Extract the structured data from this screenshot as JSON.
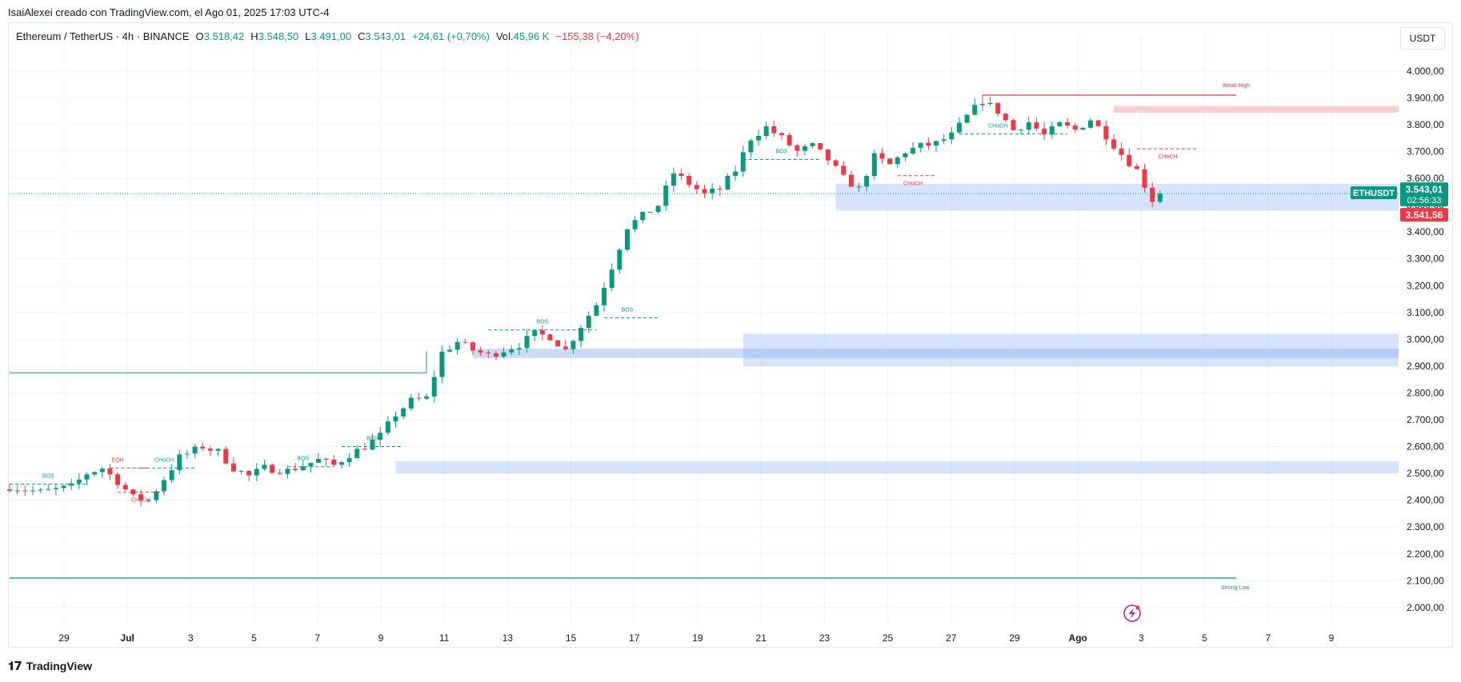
{
  "credit": "IsaiAlexei creado con TradingView.com, el Ago 01, 2025 17:03 UTC-4",
  "legend": {
    "symbol": "Ethereum / TetherUS · 4h · BINANCE",
    "o_label": "O",
    "o_value": "3.518,42",
    "h_label": "H",
    "h_value": "3.548,50",
    "l_label": "L",
    "l_value": "3.491,00",
    "c_label": "C",
    "c_value": "3.543,01",
    "change": "+24,61 (+0,70%)",
    "vol_label": "Vol.",
    "vol_value": "45,96 K",
    "vol_change": "−155,38 (−4,20%)"
  },
  "currency_button": "USDT",
  "brand": "TradingView",
  "colors": {
    "up": "#089981",
    "down": "#f23645",
    "zone_blue": "#b2ccfb",
    "zone_red": "#f7c3c6",
    "grid": "#f0f3fa"
  },
  "chart_data": {
    "type": "candlestick",
    "y_range": [
      1940,
      4080
    ],
    "y_ticks": [
      "4.000,00",
      "3.900,00",
      "3.800,00",
      "3.700,00",
      "3.600,00",
      "3.500,00",
      "3.400,00",
      "3.300,00",
      "3.200,00",
      "3.100,00",
      "3.000,00",
      "2.900,00",
      "2.800,00",
      "2.700,00",
      "2.600,00",
      "2.500,00",
      "2.400,00",
      "2.300,00",
      "2.200,00",
      "2.100,00",
      "2.000,00"
    ],
    "x_ticks": [
      "29",
      "Jul",
      "3",
      "5",
      "7",
      "9",
      "11",
      "13",
      "15",
      "17",
      "19",
      "21",
      "23",
      "25",
      "27",
      "29",
      "Ago",
      "3",
      "5",
      "7",
      "9"
    ],
    "price_label": {
      "name": "ETHUSDT",
      "price": "3.543,01",
      "countdown": "02:56:33",
      "value": 3543.01
    },
    "low_label": {
      "price": "3.541,56",
      "value": 3541.56
    },
    "waypoints": [
      [
        0,
        2450
      ],
      [
        4,
        2430
      ],
      [
        6,
        2440
      ],
      [
        8,
        2450
      ],
      [
        10,
        2500
      ],
      [
        12,
        2520
      ],
      [
        14,
        2470
      ],
      [
        16,
        2410
      ],
      [
        18,
        2400
      ],
      [
        20,
        2480
      ],
      [
        22,
        2560
      ],
      [
        25,
        2600
      ],
      [
        27,
        2580
      ],
      [
        29,
        2520
      ],
      [
        31,
        2490
      ],
      [
        33,
        2520
      ],
      [
        36,
        2510
      ],
      [
        38,
        2530
      ],
      [
        40,
        2550
      ],
      [
        42,
        2530
      ],
      [
        44,
        2570
      ],
      [
        46,
        2600
      ],
      [
        48,
        2640
      ],
      [
        50,
        2720
      ],
      [
        52,
        2770
      ],
      [
        54,
        2780
      ],
      [
        56,
        2950
      ],
      [
        58,
        2990
      ],
      [
        60,
        2960
      ],
      [
        62,
        2940
      ],
      [
        64,
        2960
      ],
      [
        66,
        2980
      ],
      [
        68,
        3020
      ],
      [
        70,
        3010
      ],
      [
        72,
        2960
      ],
      [
        74,
        3050
      ],
      [
        76,
        3130
      ],
      [
        78,
        3270
      ],
      [
        80,
        3420
      ],
      [
        82,
        3460
      ],
      [
        84,
        3500
      ],
      [
        86,
        3620
      ],
      [
        88,
        3580
      ],
      [
        90,
        3540
      ],
      [
        92,
        3560
      ],
      [
        94,
        3630
      ],
      [
        96,
        3750
      ],
      [
        98,
        3790
      ],
      [
        100,
        3750
      ],
      [
        102,
        3700
      ],
      [
        104,
        3720
      ],
      [
        106,
        3670
      ],
      [
        108,
        3600
      ],
      [
        110,
        3560
      ],
      [
        112,
        3680
      ],
      [
        114,
        3650
      ],
      [
        116,
        3700
      ],
      [
        118,
        3720
      ],
      [
        120,
        3730
      ],
      [
        122,
        3760
      ],
      [
        124,
        3830
      ],
      [
        126,
        3890
      ],
      [
        128,
        3850
      ],
      [
        130,
        3780
      ],
      [
        132,
        3810
      ],
      [
        134,
        3760
      ],
      [
        136,
        3800
      ],
      [
        138,
        3780
      ],
      [
        140,
        3820
      ],
      [
        142,
        3760
      ],
      [
        144,
        3690
      ],
      [
        146,
        3630
      ],
      [
        148,
        3520
      ],
      [
        149,
        3543
      ]
    ],
    "zones": [
      {
        "from": 107,
        "to": 9999,
        "top": 3580,
        "bottom": 3480,
        "kind": "demand"
      },
      {
        "from": 95,
        "to": 9999,
        "top": 3020,
        "bottom": 2900,
        "kind": "demand"
      },
      {
        "from": 60,
        "to": 9999,
        "top": 2965,
        "bottom": 2930,
        "kind": "demand-core"
      },
      {
        "from": 50,
        "to": 9999,
        "top": 2545,
        "bottom": 2500,
        "kind": "demand"
      },
      {
        "from": 143,
        "to": 9999,
        "top": 3870,
        "bottom": 3845,
        "kind": "supply"
      }
    ],
    "annotations": [
      {
        "label": "BOS",
        "x": 5,
        "price": 2460,
        "type": "bos",
        "from": 0,
        "to": 10
      },
      {
        "label": "EQH",
        "x": 14,
        "price": 2520,
        "type": "eqh",
        "from": 13,
        "to": 18
      },
      {
        "label": "CHoCH",
        "x": 20,
        "price": 2520,
        "type": "choch",
        "from": 17,
        "to": 24
      },
      {
        "label": "CHoCH",
        "x": 17,
        "price": 2430,
        "type": "chochd",
        "from": 14,
        "to": 20
      },
      {
        "label": "BOS",
        "x": 38,
        "price": 2525,
        "type": "bos",
        "from": 36,
        "to": 42
      },
      {
        "label": "BOS",
        "x": 47,
        "price": 2600,
        "type": "bos",
        "from": 43,
        "to": 51
      },
      {
        "label": "BOS",
        "x": 69,
        "price": 3035,
        "type": "bos",
        "from": 62,
        "to": 76
      },
      {
        "label": "BOS",
        "x": 80,
        "price": 3080,
        "type": "bos",
        "from": 77,
        "to": 84
      },
      {
        "label": "BOS",
        "x": 100,
        "price": 3670,
        "type": "bos",
        "from": 95,
        "to": 105
      },
      {
        "label": "CHoCH",
        "x": 117,
        "price": 3610,
        "type": "chochd",
        "from": 115,
        "to": 120
      },
      {
        "label": "CHoCH",
        "x": 128,
        "price": 3765,
        "type": "choch",
        "from": 123,
        "to": 137
      },
      {
        "label": "CHoCH",
        "x": 150,
        "price": 3710,
        "type": "chochd",
        "from": 146,
        "to": 154
      }
    ],
    "weak_high": {
      "label": "Weak High",
      "price": 3940
    },
    "strong_low": {
      "label": "Strong Low",
      "price": 2110
    },
    "range_line_price": 2875
  }
}
